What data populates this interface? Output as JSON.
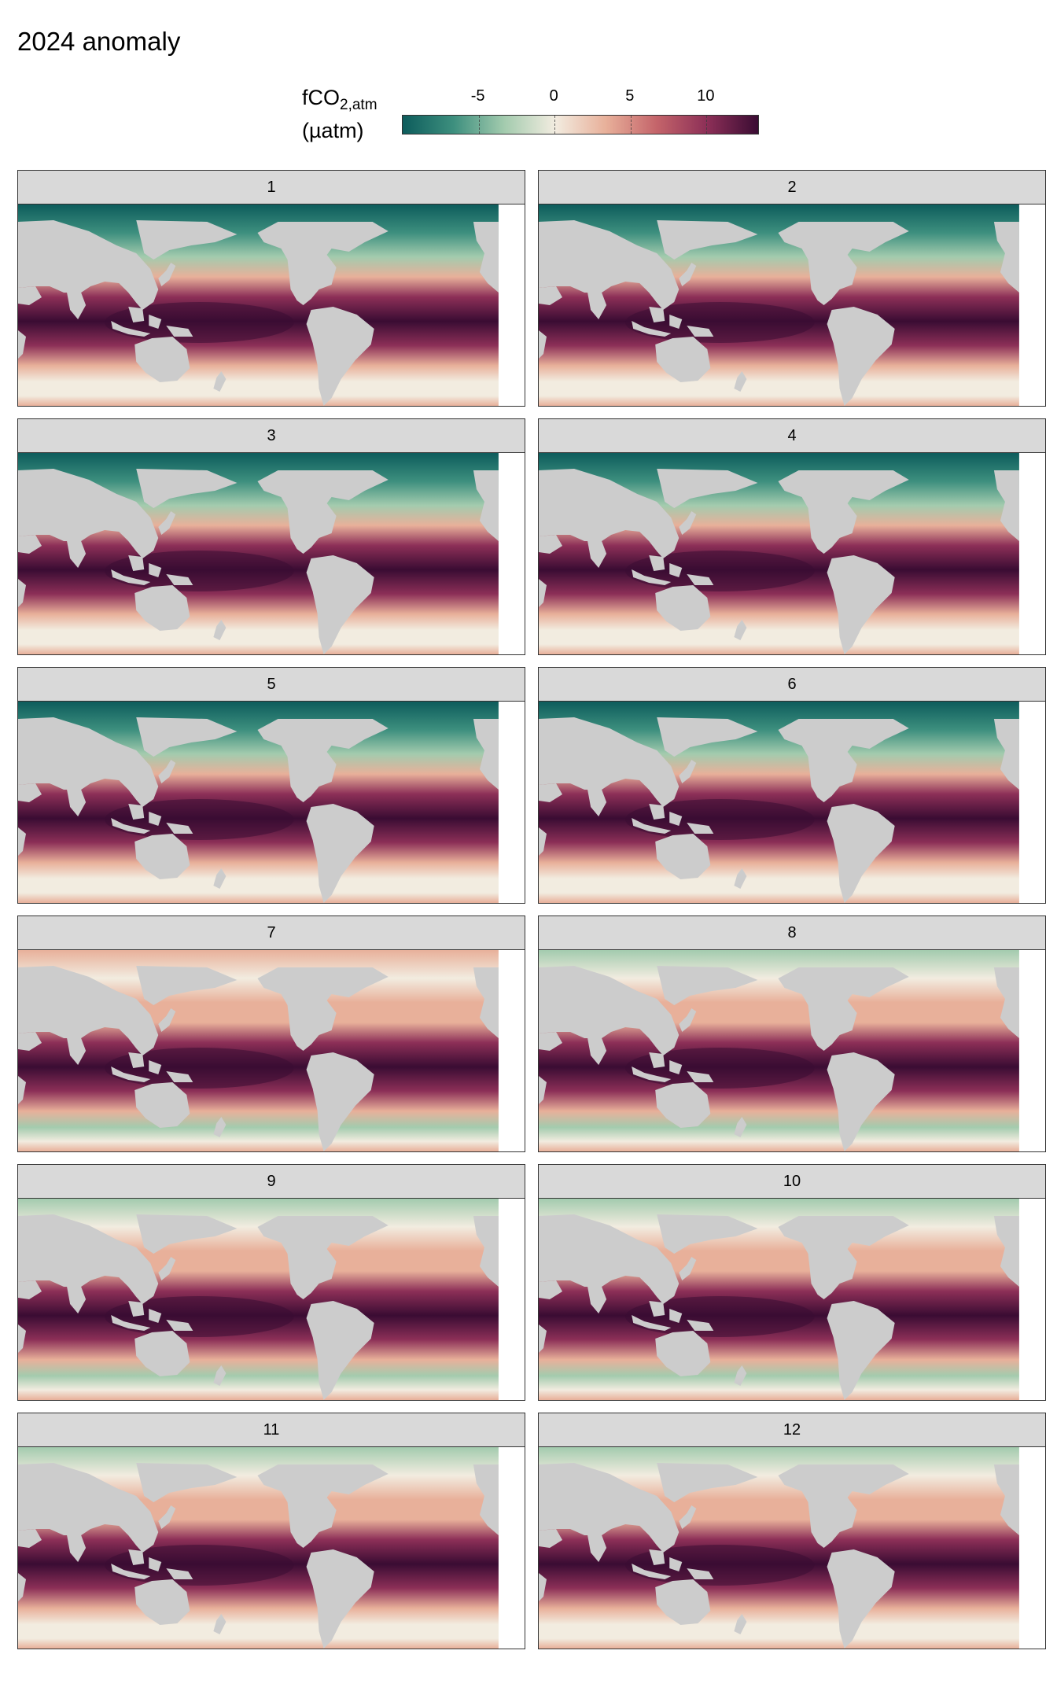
{
  "title": "2024 anomaly",
  "legend": {
    "title_main": "fCO",
    "title_sub": "2,atm",
    "title_unit": "(µatm)",
    "min": -10,
    "max": 13.5,
    "ticks": [
      -5,
      0,
      5,
      10
    ],
    "colors": [
      "#0d5c5c",
      "#3d8f7e",
      "#a3cbae",
      "#f2ece0",
      "#e8b09a",
      "#c4646a",
      "#8c2f57",
      "#3a0c33"
    ]
  },
  "land_color": "#cccccc",
  "panels": [
    {
      "label": "1"
    },
    {
      "label": "2"
    },
    {
      "label": "3"
    },
    {
      "label": "4"
    },
    {
      "label": "5"
    },
    {
      "label": "6"
    },
    {
      "label": "7"
    },
    {
      "label": "8"
    },
    {
      "label": "9"
    },
    {
      "label": "10"
    },
    {
      "label": "11"
    },
    {
      "label": "12"
    }
  ]
}
